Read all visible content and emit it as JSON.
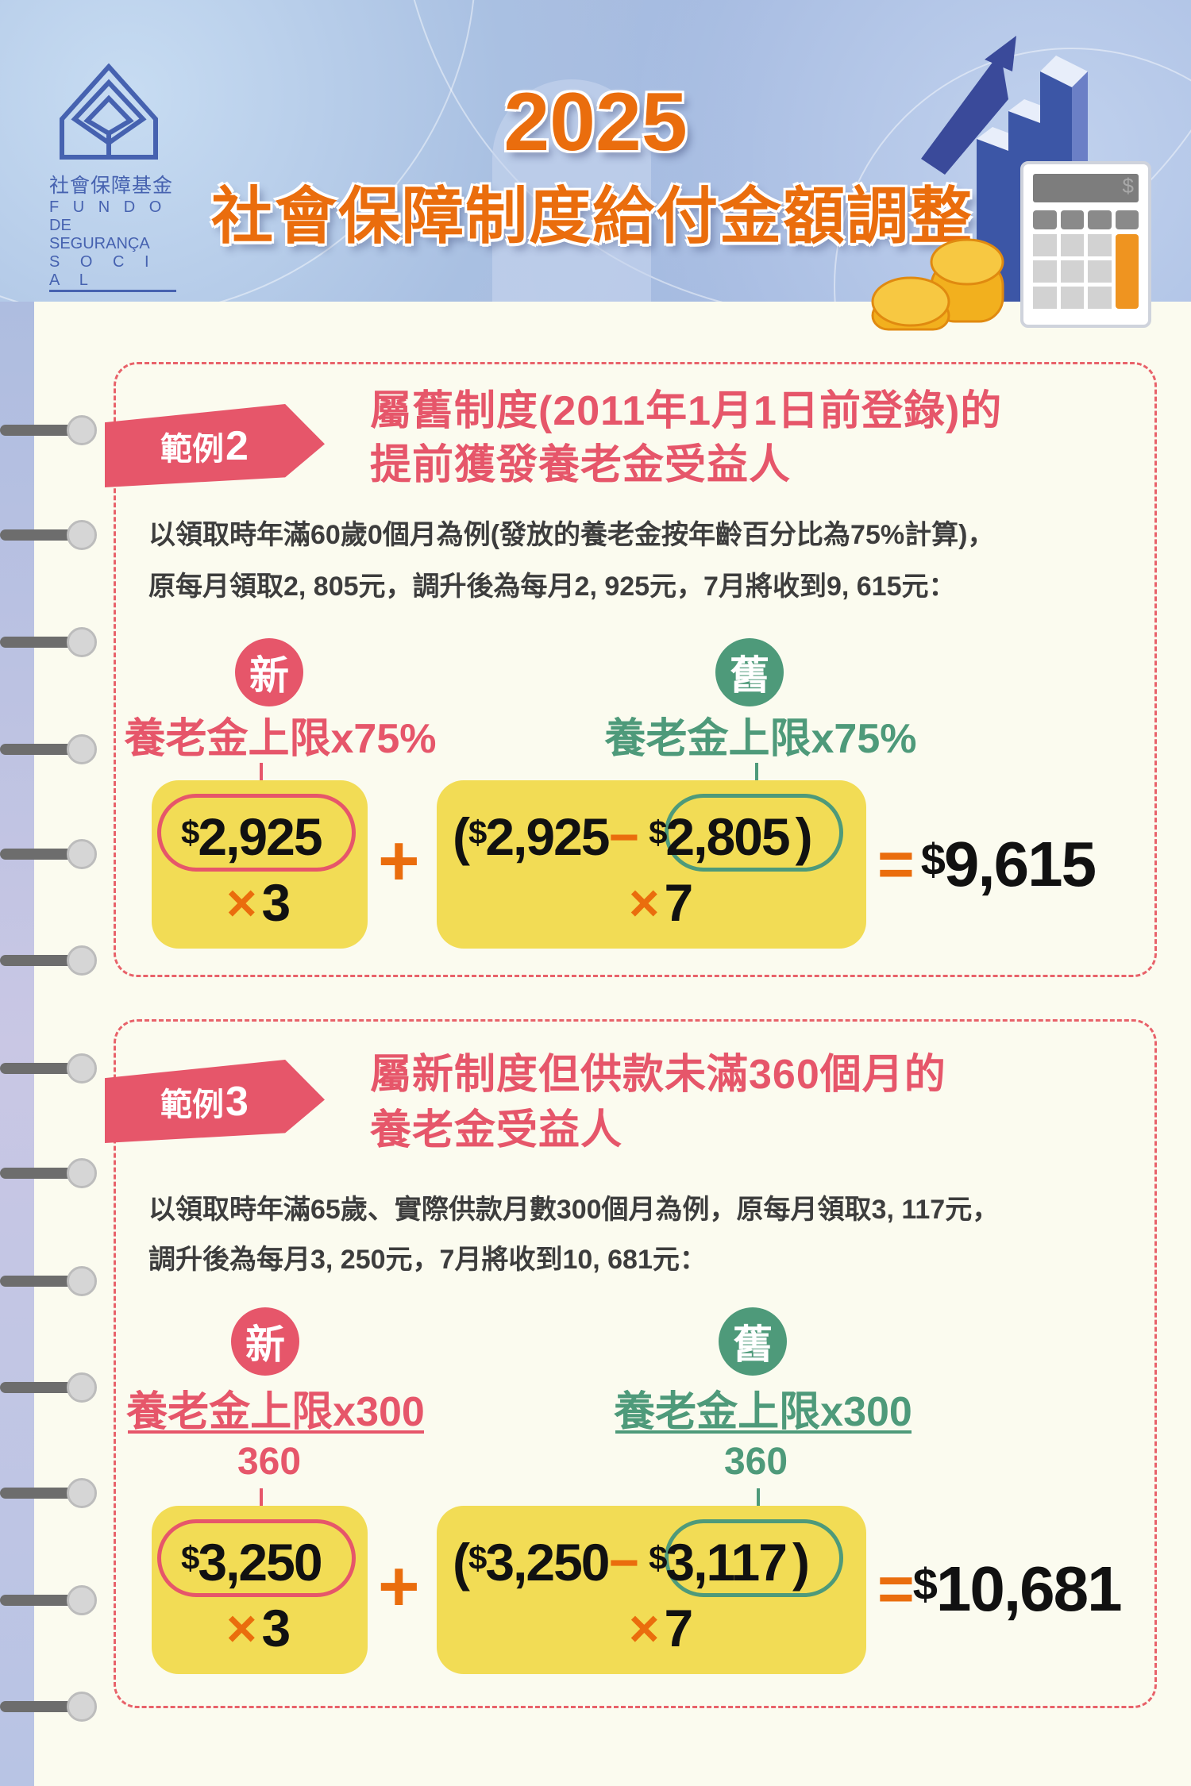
{
  "header": {
    "logo": {
      "zh": "社會保障基金",
      "pt_line1": "F U N D O",
      "pt_line2": "DE SEGURANÇA",
      "pt_line3": "S O C I A L"
    },
    "year": "2025",
    "title": "社會保障制度給付金額調整",
    "calculator_symbol": "$"
  },
  "colors": {
    "accent_red": "#e6566a",
    "accent_green": "#4e9a7a",
    "orange": "#ea6d0d",
    "yellow": "#f2dc55"
  },
  "examples": [
    {
      "tag_label": "範例",
      "tag_number": "2",
      "title_line1": "屬舊制度(2011年1月1日前登錄)的",
      "title_line2": "提前獲發養老金受益人",
      "desc_line1": "以領取時年滿60歲0個月為例(發放的養老金按年齡百分比為75%計算)，",
      "desc_line2": "原每月領取2, 805元，調升後為每月2, 925元，7月將收到9, 615元：",
      "new_badge": "新",
      "old_badge": "舊",
      "new_label": "養老金上限x75%",
      "old_label": "養老金上限x75%",
      "new_amount": "2,925",
      "multiplier_new": "3",
      "diff_amount_new": "2,925",
      "diff_amount_old": "2,805",
      "multiplier_old": "7",
      "dollar": "$",
      "open_paren": "(",
      "close_paren": ")",
      "minus": "−",
      "times": "×",
      "plus": "+",
      "equals": "=",
      "result": "9,615"
    },
    {
      "tag_label": "範例",
      "tag_number": "3",
      "title_line1": "屬新制度但供款未滿360個月的",
      "title_line2": "養老金受益人",
      "desc_line1": "以領取時年滿65歲、實際供款月數300個月為例，原每月領取3, 117元，",
      "desc_line2": "調升後為每月3, 250元，7月將收到10, 681元：",
      "new_badge": "新",
      "old_badge": "舊",
      "new_label": "養老金上限x300",
      "old_label": "養老金上限x300",
      "new_denominator": "360",
      "old_denominator": "360",
      "new_amount": "3,250",
      "multiplier_new": "3",
      "diff_amount_new": "3,250",
      "diff_amount_old": "3,117",
      "multiplier_old": "7",
      "dollar": "$",
      "open_paren": "(",
      "close_paren": ")",
      "minus": "−",
      "times": "×",
      "plus": "+",
      "equals": "=",
      "result": "10,681"
    }
  ]
}
